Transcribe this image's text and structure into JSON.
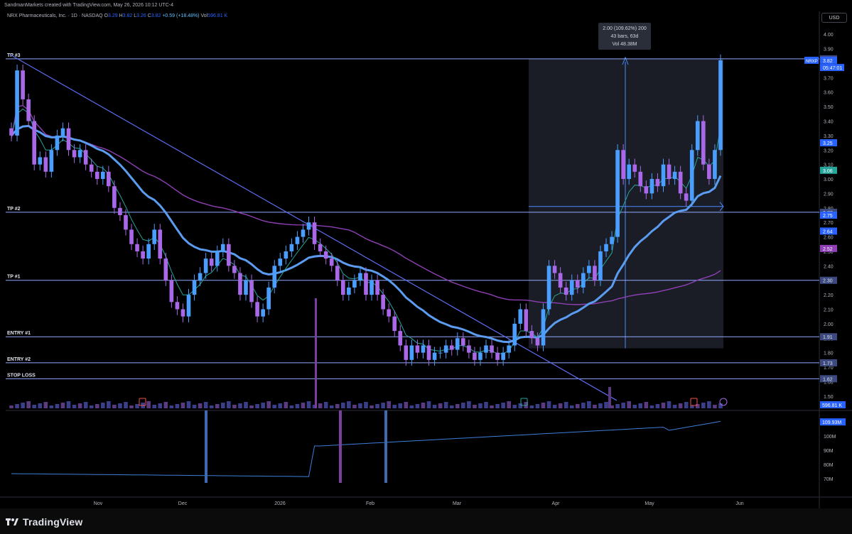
{
  "header": {
    "created_by": "SandmanMarkets created with TradingView.com, May 26, 2026 10:12 UTC-4",
    "symbol_title": "NRX Pharmaceuticals, Inc. · 1D · NASDAQ",
    "open_label": "O",
    "open": "3.29",
    "high_label": "H",
    "high": "3.82",
    "low_label": "L",
    "low": "3.26",
    "close_label": "C",
    "close": "3.82",
    "change": "+0.59 (+18.48%)",
    "vol_label": "Vol",
    "volume": "596.81 K"
  },
  "currency": "USD",
  "brand": "TradingView",
  "colors": {
    "candle": "#4a9eff",
    "candle_down": "#a868e8",
    "level_line": "#90a8ff",
    "trendline": "#5b6cf0",
    "ema_slow": "#5b9cf0",
    "sma_long": "#8e3fb5",
    "ema_fast": "#26a69a",
    "measure_box": "#1e222d"
  },
  "chart_data": {
    "type": "candlestick",
    "ticker": "NRXP",
    "price_axis": {
      "ticks": [
        "4.00",
        "3.90",
        "3.80",
        "3.70",
        "3.60",
        "3.50",
        "3.40",
        "3.30",
        "3.20",
        "3.10",
        "3.00",
        "2.90",
        "2.80",
        "2.70",
        "2.60",
        "2.50",
        "2.40",
        "2.30",
        "2.20",
        "2.10",
        "2.00",
        "1.90",
        "1.80",
        "1.70",
        "1.60",
        "1.50"
      ],
      "range": [
        1.45,
        4.05
      ]
    },
    "time_axis": {
      "ticks": [
        "Nov",
        "Dec",
        "2026",
        "Feb",
        "Mar",
        "Apr",
        "May",
        "Jun"
      ]
    },
    "levels": [
      {
        "name": "TP #3",
        "price": 3.83,
        "badge": "3.83"
      },
      {
        "name": "TP #2",
        "price": 2.77,
        "badge": "2.77"
      },
      {
        "name": "TP #1",
        "price": 2.3,
        "badge": "2.30"
      },
      {
        "name": "ENTRY #1",
        "price": 1.91,
        "badge": "1.91"
      },
      {
        "name": "ENTRY #2",
        "price": 1.73,
        "badge": "1.73"
      },
      {
        "name": "STOP LOSS",
        "price": 1.62,
        "badge": "1.62"
      }
    ],
    "price_badges": [
      {
        "label": "3.82",
        "price": 3.82,
        "color": "#2962ff"
      },
      {
        "label": "05:47:01",
        "price": 3.77,
        "color": "#2962ff"
      },
      {
        "label": "3.25",
        "price": 3.25,
        "color": "#2962ff"
      },
      {
        "label": "3.06",
        "price": 3.06,
        "color": "#26a69a"
      },
      {
        "label": "2.75",
        "price": 2.75,
        "color": "#2962ff"
      },
      {
        "label": "2.64",
        "price": 2.64,
        "color": "#2962ff"
      },
      {
        "label": "2.52",
        "price": 2.52,
        "color": "#8e3fb5"
      }
    ],
    "measure": {
      "line1": "2.00 (109.62%) 200",
      "line2": "43 bars, 63d",
      "line3": "Vol 48.38M",
      "from_price": 1.83,
      "to_price": 3.83
    },
    "volume_badge": "596.81 K",
    "lower_pane": {
      "ticks": [
        "100M",
        "90M",
        "80M",
        "70M"
      ],
      "badge": "109.93M",
      "range": [
        62,
        116
      ]
    },
    "closes": [
      3.3,
      3.75,
      3.55,
      3.4,
      3.1,
      3.15,
      3.05,
      3.2,
      3.3,
      3.35,
      3.2,
      3.15,
      3.2,
      3.1,
      3.05,
      3.0,
      3.05,
      2.95,
      2.8,
      2.75,
      2.65,
      2.55,
      2.5,
      2.45,
      2.55,
      2.65,
      2.45,
      2.3,
      2.15,
      2.1,
      2.05,
      2.2,
      2.3,
      2.35,
      2.45,
      2.4,
      2.5,
      2.55,
      2.4,
      2.35,
      2.2,
      2.3,
      2.15,
      2.05,
      2.1,
      2.25,
      2.4,
      2.45,
      2.5,
      2.55,
      2.6,
      2.65,
      2.7,
      2.55,
      2.5,
      2.45,
      2.4,
      2.3,
      2.2,
      2.25,
      2.3,
      2.35,
      2.2,
      2.3,
      2.2,
      2.1,
      2.05,
      1.95,
      1.85,
      1.75,
      1.85,
      1.8,
      1.85,
      1.75,
      1.8,
      1.8,
      1.85,
      1.82,
      1.9,
      1.85,
      1.8,
      1.75,
      1.8,
      1.85,
      1.8,
      1.75,
      1.8,
      1.85,
      2.0,
      2.1,
      1.95,
      1.9,
      1.85,
      2.1,
      2.4,
      2.35,
      2.25,
      2.2,
      2.3,
      2.25,
      2.35,
      2.4,
      2.3,
      2.5,
      2.55,
      2.6,
      3.2,
      3.0,
      3.1,
      3.05,
      2.95,
      2.9,
      3.0,
      2.95,
      3.1,
      3.0,
      3.05,
      2.9,
      2.85,
      3.2,
      3.4,
      3.1,
      3.0,
      3.2,
      3.82
    ],
    "volume_ma": [
      2,
      2,
      2
    ],
    "legend": ""
  }
}
